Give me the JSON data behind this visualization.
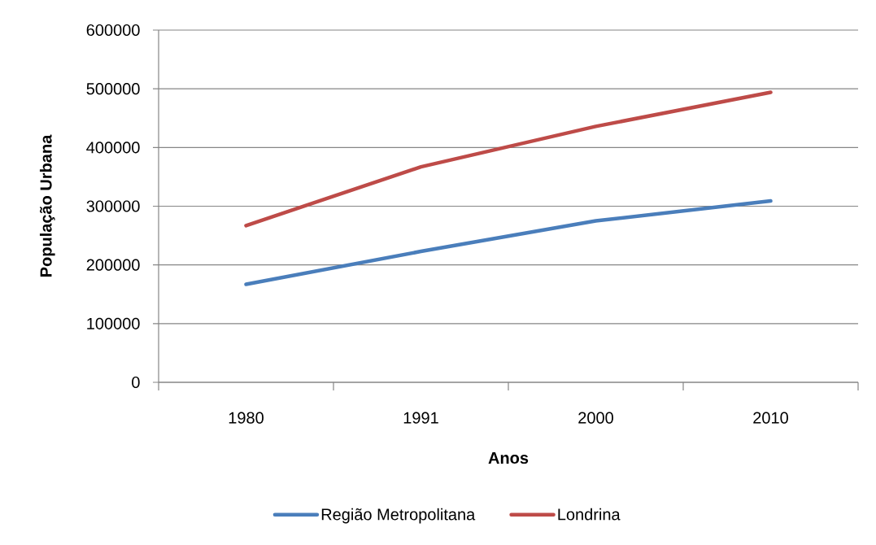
{
  "chart_data": {
    "type": "line",
    "xlabel": "Anos",
    "ylabel": "População Urbana",
    "categories": [
      "1980",
      "1991",
      "2000",
      "2010"
    ],
    "series": [
      {
        "name": "Região Metropolitana",
        "color": "#4a7ebb",
        "values": [
          167000,
          223000,
          275000,
          309000
        ]
      },
      {
        "name": "Londrina",
        "color": "#be4b48",
        "values": [
          267000,
          367000,
          436000,
          494000
        ]
      }
    ],
    "ylim": [
      0,
      600000
    ],
    "yticks": [
      0,
      100000,
      200000,
      300000,
      400000,
      500000,
      600000
    ],
    "grid": "y",
    "legend": "bottom",
    "line_style": "solid"
  }
}
